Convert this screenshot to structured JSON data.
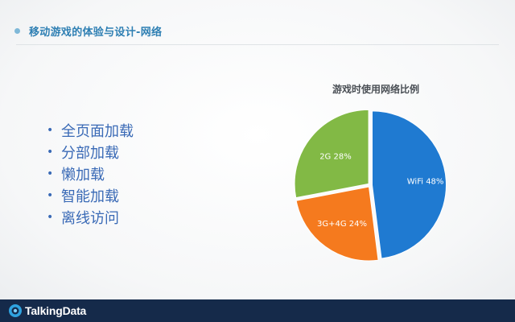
{
  "header": {
    "title": "移动游戏的体验与设计-网络"
  },
  "bullets": [
    "全页面加载",
    "分部加载",
    "懒加载",
    "智能加载",
    "离线访问"
  ],
  "chart_data": {
    "type": "pie",
    "title": "游戏时使用网络比例",
    "slices": [
      {
        "label": "WiFi 48%",
        "value": 48,
        "color": "#1f7ad1"
      },
      {
        "label": "3G+4G 24%",
        "value": 24,
        "color": "#f57a1e"
      },
      {
        "label": "2G 28%",
        "value": 28,
        "color": "#82b945"
      }
    ]
  },
  "footer": {
    "logo_text": "TalkingData"
  },
  "colors": {
    "accent": "#2e7fb3",
    "footer_bg": "#152a4a"
  }
}
